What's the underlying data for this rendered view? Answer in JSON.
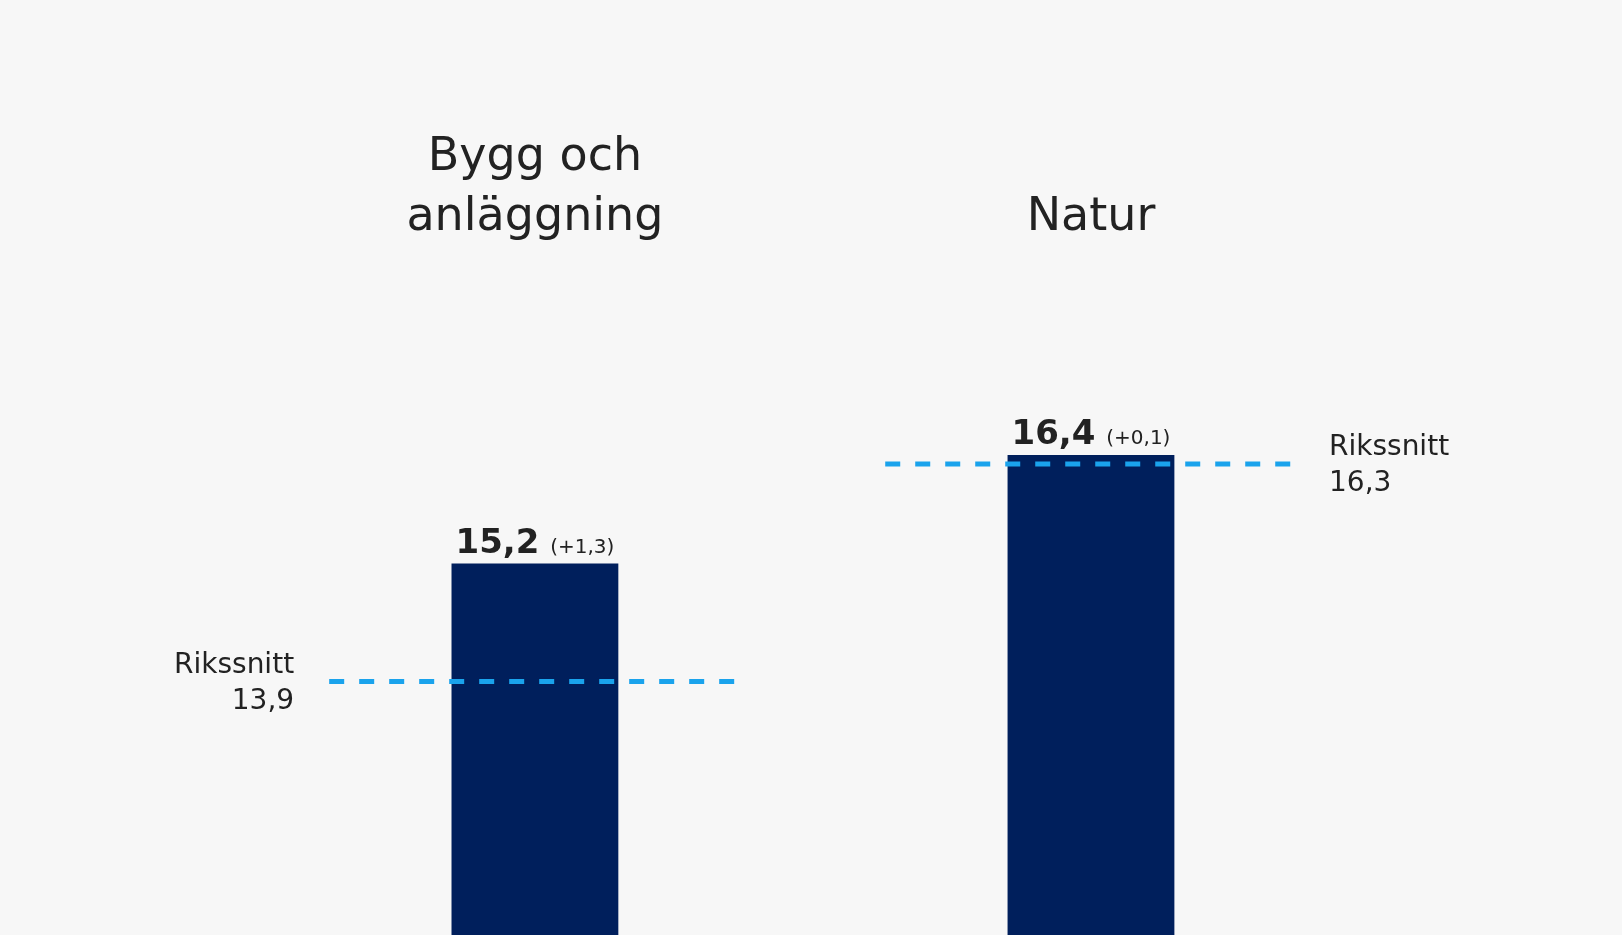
{
  "chart_data": {
    "type": "bar",
    "categories": [
      "Bygg och anläggning",
      "Natur"
    ],
    "values": [
      15.2,
      16.4
    ],
    "value_labels": [
      "15,2 (+1,3)",
      "16,4 (+0,1)"
    ],
    "color": "#001f5c",
    "tick_labels": "x",
    "grid": false,
    "ref_lines": [
      {
        "axis": "y",
        "value": 13.9,
        "label": "Rikssnitt\n13,9",
        "color": "#1aa3ec",
        "line_style": "dashed"
      },
      {
        "axis": "y",
        "value": 16.3,
        "label": "Rikssnitt\n16,3",
        "color": "#1aa3ec",
        "line_style": "dashed"
      }
    ]
  }
}
